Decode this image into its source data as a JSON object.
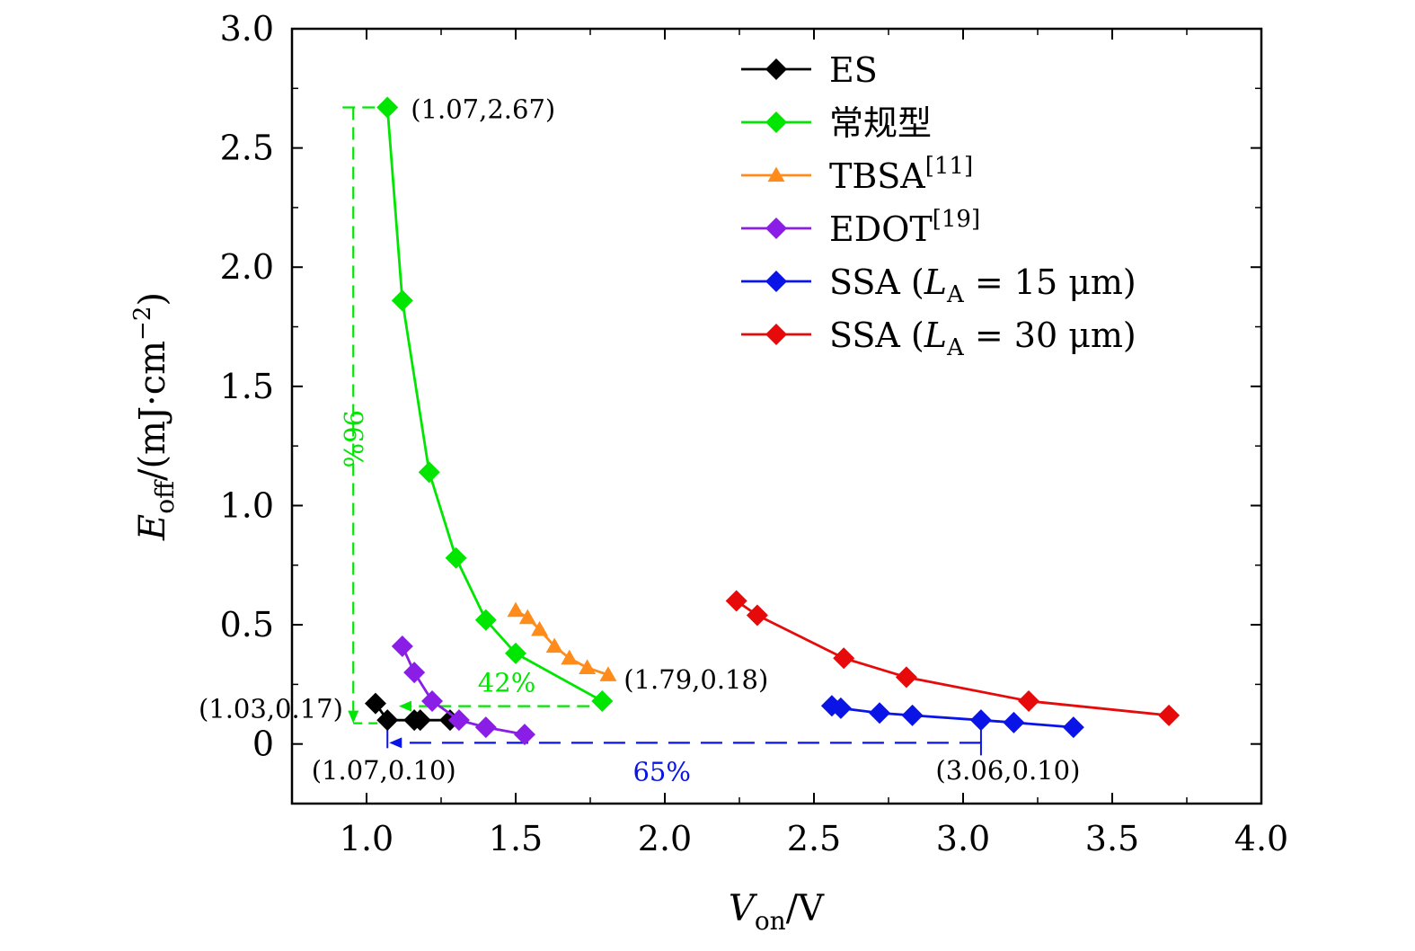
{
  "chart_data": {
    "type": "line",
    "xlabel": {
      "main": "V",
      "sub": "on",
      "unit": "/V"
    },
    "ylabel": {
      "main": "E",
      "sub": "off",
      "unit_pre": "/(mJ·cm",
      "unit_sup": "−2",
      "unit_post": ")"
    },
    "xlim": [
      0.75,
      4.0
    ],
    "ylim": [
      -0.25,
      3.0
    ],
    "xticks": [
      {
        "value": 1.0,
        "label": "1.0"
      },
      {
        "value": 1.5,
        "label": "1.5"
      },
      {
        "value": 2.0,
        "label": "2.0"
      },
      {
        "value": 2.5,
        "label": "2.5"
      },
      {
        "value": 3.0,
        "label": "3.0"
      },
      {
        "value": 3.5,
        "label": "3.5"
      },
      {
        "value": 4.0,
        "label": "4.0"
      }
    ],
    "yticks": [
      {
        "value": 0,
        "label": "0"
      },
      {
        "value": 0.5,
        "label": "0.5"
      },
      {
        "value": 1.0,
        "label": "1.0"
      },
      {
        "value": 1.5,
        "label": "1.5"
      },
      {
        "value": 2.0,
        "label": "2.0"
      },
      {
        "value": 2.5,
        "label": "2.5"
      },
      {
        "value": 3.0,
        "label": "3.0"
      }
    ],
    "series": [
      {
        "name": "ES",
        "label": {
          "main": "ES"
        },
        "color": "#000000",
        "marker": "diamond",
        "x": [
          1.03,
          1.07,
          1.16,
          1.18,
          1.28
        ],
        "y": [
          0.17,
          0.1,
          0.1,
          0.1,
          0.1
        ]
      },
      {
        "name": "常规型",
        "label": {
          "main": "常规型"
        },
        "color": "#00e600",
        "marker": "diamond",
        "x": [
          1.07,
          1.12,
          1.21,
          1.3,
          1.4,
          1.5,
          1.79
        ],
        "y": [
          2.67,
          1.86,
          1.14,
          0.78,
          0.52,
          0.38,
          0.18
        ]
      },
      {
        "name": "TBSA[11]",
        "label": {
          "main": "TBSA",
          "sup": "[11]"
        },
        "color": "#ff8c1a",
        "marker": "triangle",
        "x": [
          1.5,
          1.54,
          1.58,
          1.63,
          1.68,
          1.74,
          1.81
        ],
        "y": [
          0.56,
          0.53,
          0.48,
          0.41,
          0.36,
          0.32,
          0.29
        ]
      },
      {
        "name": "EDOT[19]",
        "label": {
          "main": "EDOT",
          "sup": "[19]"
        },
        "color": "#8a1ee6",
        "marker": "diamond",
        "x": [
          1.12,
          1.16,
          1.22,
          1.31,
          1.4,
          1.53
        ],
        "y": [
          0.41,
          0.3,
          0.18,
          0.1,
          0.07,
          0.04
        ]
      },
      {
        "name": "SSA (LA = 15 μm)",
        "label": {
          "main": "SSA (",
          "ital": "L",
          "sub": "A",
          "post": " = 15 μm)"
        },
        "color": "#0a14e6",
        "marker": "diamond",
        "x": [
          2.56,
          2.59,
          2.72,
          2.83,
          3.06,
          3.17,
          3.37
        ],
        "y": [
          0.16,
          0.15,
          0.13,
          0.12,
          0.1,
          0.09,
          0.07
        ]
      },
      {
        "name": "SSA (LA = 30 μm)",
        "label": {
          "main": "SSA (",
          "ital": "L",
          "sub": "A",
          "post": " = 30 μm)"
        },
        "color": "#e60a0a",
        "marker": "diamond",
        "x": [
          2.24,
          2.31,
          2.6,
          2.81,
          3.22,
          3.69
        ],
        "y": [
          0.6,
          0.54,
          0.36,
          0.28,
          0.18,
          0.12
        ]
      }
    ],
    "legend_position": "top-right",
    "annotations": [
      {
        "text": "(1.07,2.67)",
        "x": 1.07,
        "y": 2.67,
        "anchor": "right-of"
      },
      {
        "text": "(1.79,0.18)",
        "x": 1.79,
        "y": 0.18,
        "anchor": "upper-right"
      },
      {
        "text": "(1.03,0.17)",
        "x": 1.03,
        "y": 0.17,
        "anchor": "left-of"
      },
      {
        "text": "(1.07,0.10)",
        "x": 1.07,
        "y": 0.1,
        "anchor": "below"
      },
      {
        "text": "(3.06,0.10)",
        "x": 3.06,
        "y": 0.1,
        "anchor": "below"
      }
    ],
    "reduction_labels": [
      {
        "text": "96%",
        "color": "#00e600",
        "from": [
          1.07,
          2.67
        ],
        "to": [
          1.03,
          0.17
        ]
      },
      {
        "text": "42%",
        "color": "#00e600",
        "from": [
          1.79,
          0.18
        ],
        "to": [
          1.03,
          0.17
        ]
      },
      {
        "text": "65%",
        "color": "#0a14e6",
        "from": [
          3.06,
          0.1
        ],
        "to": [
          1.07,
          0.1
        ]
      }
    ]
  }
}
